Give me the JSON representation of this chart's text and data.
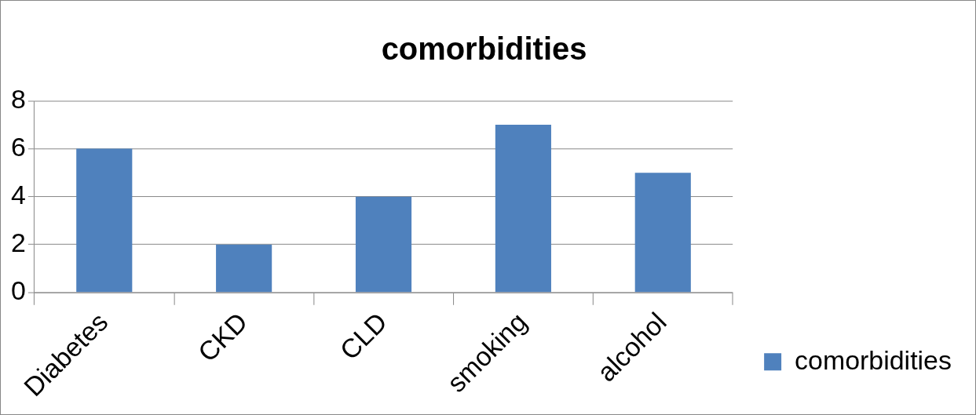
{
  "chart_data": {
    "type": "bar",
    "title": "comorbidities",
    "categories": [
      "Diabetes",
      "CKD",
      "CLD",
      "smoking",
      "alcohol"
    ],
    "series": [
      {
        "name": "comorbidities",
        "color": "#4f81bd",
        "values": [
          6,
          2,
          4,
          7,
          5
        ]
      }
    ],
    "ylim": [
      0,
      8
    ],
    "yticks": [
      0,
      2,
      4,
      6,
      8
    ],
    "grid": "y",
    "legend": "right"
  }
}
